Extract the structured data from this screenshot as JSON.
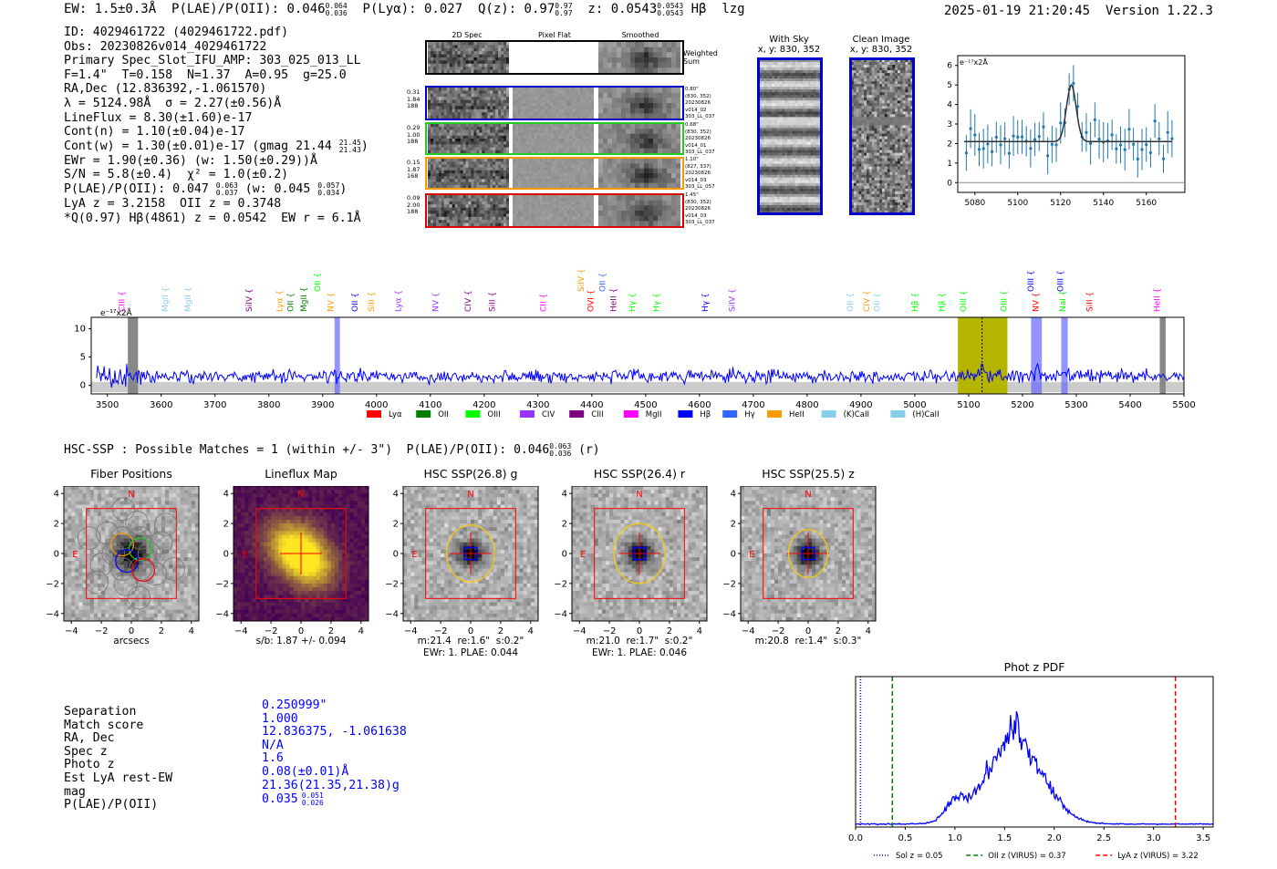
{
  "header": {
    "ew": "EW: 1.5±0.3Å",
    "plae_label": "P(LAE)/P(OII): 0.046",
    "plae_hi": "0.064",
    "plae_lo": "0.036",
    "plya": "P(Lyα): 0.027",
    "qz_label": "Q(z): 0.97",
    "qz_hi": "0.97",
    "qz_lo": "0.97",
    "z_label": "z: 0.0543",
    "z_hi": "0.0543",
    "z_lo": "0.0543",
    "line": "Hβ",
    "flag": "lzg",
    "datetime": "2025-01-19 21:20:45",
    "version": "Version 1.22.3"
  },
  "info": {
    "id": "ID: 4029461722 (4029461722.pdf)",
    "obs": "Obs: 20230826v014_4029461722",
    "primary": "Primary Spec_Slot_IFU_AMP: 303_025_013_LL",
    "fparams": "F=1.4\"  T=0.158  N=1.37  A=0.95  g=25.0",
    "radec": "RA,Dec (12.836392,-1.061570)",
    "lambda": "λ = 5124.98Å  σ = 2.27(±0.56)Å",
    "lineflux": "LineFlux = 8.30(±1.60)e-17",
    "contn": "Cont(n) = 1.10(±0.04)e-17",
    "contw": "Cont(w) = 1.30(±0.01)e-17 (gmag 21.44",
    "contw_hi": "21.45",
    "contw_lo": "21.43",
    "ewr": "EWr = 1.90(±0.36) (w: 1.50(±0.29))Å",
    "sn": "S/N = 5.8(±0.4)  χ² = 1.0(±0.2)",
    "plae": "P(LAE)/P(OII): 0.047",
    "plae_hi": "0.063",
    "plae_lo": "0.037",
    "plae_w": "(w: 0.045",
    "plae_w_hi": "0.057",
    "plae_w_lo": "0.034",
    "lya": "LyA z = 3.2158  OII z = 0.3748",
    "q": "*Q(0.97) Hβ(4861) z = 0.0542  EW r = 6.1Å"
  },
  "cutouts": {
    "col_labels": [
      "2D Spec",
      "Pixel Flat",
      "Smoothed"
    ],
    "weighted": "Weighted Sum",
    "rows": [
      {
        "num": [
          "0.31",
          "1.84",
          "188"
        ],
        "meta": [
          "0.80\"",
          "(830, 352)",
          "20230826",
          "v014_02",
          "303_LL_037"
        ],
        "color": "#0000cc"
      },
      {
        "num": [
          "0.29",
          "1.00",
          "188"
        ],
        "meta": [
          "0.68\"",
          "(830, 352)",
          "20230826",
          "v014_01",
          "303_LL_037"
        ],
        "color": "#22cc22"
      },
      {
        "num": [
          "0.15",
          "1.87",
          "168"
        ],
        "meta": [
          "1.10\"",
          "(827, 337)",
          "20230826",
          "v014_03",
          "303_LL_057"
        ],
        "color": "#ff9900"
      },
      {
        "num": [
          "0.09",
          "2.00",
          "188"
        ],
        "meta": [
          "1.45\"",
          "(830, 352)",
          "20230826",
          "v014_03",
          "303_LL_037"
        ],
        "color": "#dd0000"
      }
    ],
    "with_sky": "With Sky",
    "with_sky_coord": "x, y: 830, 352",
    "clean": "Clean Image",
    "clean_coord": "x, y: 830, 352"
  },
  "line_fit": {
    "unit": "e⁻¹⁷x2Å",
    "ylim": [
      -0.5,
      6.5
    ],
    "yticks": [
      "0",
      "1",
      "2",
      "3",
      "4",
      "5",
      "6"
    ],
    "xticks": [
      "5080",
      "5100",
      "5120",
      "5140",
      "5160"
    ]
  },
  "spectrum": {
    "unit": "e⁻¹⁷x2Å",
    "yticks": [
      "0",
      "5",
      "10"
    ],
    "xticks": [
      "3500",
      "3600",
      "3700",
      "3800",
      "3900",
      "4000",
      "4100",
      "4200",
      "4300",
      "4400",
      "4500",
      "4600",
      "4700",
      "4800",
      "4900",
      "5000",
      "5100",
      "5200",
      "5300",
      "5400",
      "5500"
    ],
    "legend": [
      {
        "label": "Lyα",
        "color": "#ff0000"
      },
      {
        "label": "OII",
        "color": "#008000"
      },
      {
        "label": "OIII",
        "color": "#00ff00"
      },
      {
        "label": "CIV",
        "color": "#9933ff"
      },
      {
        "label": "CIII",
        "color": "#800080"
      },
      {
        "label": "MgII",
        "color": "#ff00ff"
      },
      {
        "label": "Hβ",
        "color": "#0000ff"
      },
      {
        "label": "Hγ",
        "color": "#3366ff"
      },
      {
        "label": "HeII",
        "color": "#ff9900"
      },
      {
        "label": "(K)CaII",
        "color": "#87ceeb"
      },
      {
        "label": "(H)CaII",
        "color": "#87ceeb"
      }
    ],
    "lines": [
      {
        "x": 3527,
        "label": "CIII",
        "color": "#ff00ff",
        "row": 1
      },
      {
        "x": 3607,
        "label": "MgII",
        "color": "#87ceeb",
        "row": 1
      },
      {
        "x": 3650,
        "label": "MgII",
        "color": "#87ceeb",
        "row": 1
      },
      {
        "x": 3763,
        "label": "SiIV",
        "color": "#800080",
        "row": 1
      },
      {
        "x": 3820,
        "label": "Lyα",
        "color": "#ff9900",
        "row": 1
      },
      {
        "x": 3840,
        "label": "OII",
        "color": "#008000",
        "row": 1
      },
      {
        "x": 3865,
        "label": "MgII",
        "color": "#008000",
        "row": 1
      },
      {
        "x": 3890,
        "label": "OII",
        "color": "#00ff00",
        "row": 0
      },
      {
        "x": 3915,
        "label": "NV",
        "color": "#ff9900",
        "row": 1
      },
      {
        "x": 3960,
        "label": "OII",
        "color": "#0000ff",
        "row": 1
      },
      {
        "x": 3990,
        "label": "SiII",
        "color": "#ff9900",
        "row": 1
      },
      {
        "x": 4040,
        "label": "Lyα",
        "color": "#9933ff",
        "row": 1
      },
      {
        "x": 4110,
        "label": "NV",
        "color": "#9933ff",
        "row": 1
      },
      {
        "x": 4170,
        "label": "CIV",
        "color": "#800080",
        "row": 1
      },
      {
        "x": 4215,
        "label": "SiII",
        "color": "#800080",
        "row": 1
      },
      {
        "x": 4310,
        "label": "CII",
        "color": "#ff00ff",
        "row": 1
      },
      {
        "x": 4380,
        "label": "SiIV",
        "color": "#ff9900",
        "row": 0
      },
      {
        "x": 4398,
        "label": "OVI",
        "color": "#ff0000",
        "row": 1
      },
      {
        "x": 4420,
        "label": "OII",
        "color": "#3366ff",
        "row": 0
      },
      {
        "x": 4440,
        "label": "HeII",
        "color": "#800080",
        "row": 1
      },
      {
        "x": 4475,
        "label": "Hγ",
        "color": "#00ff00",
        "row": 1
      },
      {
        "x": 4520,
        "label": "Hγ",
        "color": "#00ff00",
        "row": 1
      },
      {
        "x": 4610,
        "label": "Hγ",
        "color": "#0000ff",
        "row": 1
      },
      {
        "x": 4660,
        "label": "SiIV",
        "color": "#9933ff",
        "row": 1
      },
      {
        "x": 4880,
        "label": "OII",
        "color": "#87ceeb",
        "row": 1
      },
      {
        "x": 4910,
        "label": "CIV",
        "color": "#ff9900",
        "row": 1
      },
      {
        "x": 4930,
        "label": "OII",
        "color": "#87ceeb",
        "row": 1
      },
      {
        "x": 5000,
        "label": "Hβ",
        "color": "#00ff00",
        "row": 1
      },
      {
        "x": 5050,
        "label": "Hβ",
        "color": "#00ff00",
        "row": 1
      },
      {
        "x": 5090,
        "label": "OIII",
        "color": "#00ff00",
        "row": 1
      },
      {
        "x": 5165,
        "label": "OIII",
        "color": "#00ff00",
        "row": 1
      },
      {
        "x": 5215,
        "label": "OIII",
        "color": "#0000ff",
        "row": 0
      },
      {
        "x": 5225,
        "label": "NV",
        "color": "#ff0000",
        "row": 1
      },
      {
        "x": 5270,
        "label": "OIII",
        "color": "#0000ff",
        "row": 0
      },
      {
        "x": 5275,
        "label": "NaI",
        "color": "#00ff00",
        "row": 1
      },
      {
        "x": 5325,
        "label": "SiII",
        "color": "#ff0000",
        "row": 1
      },
      {
        "x": 5450,
        "label": "HeII",
        "color": "#ff00ff",
        "row": 1
      }
    ]
  },
  "hsc": {
    "title_line": "HSC-SSP : Possible Matches = 1 (within +/- 3\")  P(LAE)/P(OII): 0.046",
    "title_hi": "0.063",
    "title_lo": "0.036",
    "title_band": "(r)",
    "panels": [
      {
        "title": "Fiber Positions",
        "caption1": "arcsecs",
        "caption2": ""
      },
      {
        "title": "Lineflux Map",
        "caption1": "s/b: 1.87 +/- 0.094",
        "caption2": ""
      },
      {
        "title": "HSC SSP(26.8) g",
        "caption1": "m:21.4  re:1.6\"  s:0.2\"",
        "caption2": "EWr: 1. PLAE: 0.044"
      },
      {
        "title": "HSC SSP(26.4) r",
        "caption1": "m:21.0  re:1.7\"  s:0.2\"",
        "caption2": "EWr: 1. PLAE: 0.046"
      },
      {
        "title": "HSC SSP(25.5) z",
        "caption1": "m:20.8  re:1.4\"  s:0.3\"",
        "caption2": ""
      }
    ],
    "ticks": [
      "−4",
      "−2",
      "0",
      "2",
      "4"
    ],
    "compass_n": "N",
    "compass_e": "E"
  },
  "match": {
    "labels": [
      "Separation",
      "Match score",
      "RA, Dec",
      "Spec z",
      "Photo z",
      "Est LyA rest-EW",
      "mag",
      "P(LAE)/P(OII)"
    ],
    "values": [
      "0.250999\"",
      "1.000",
      "12.836375, -1.061638",
      "N/A",
      "1.6",
      "0.08(±0.01)Å",
      "21.36(21.35,21.38)g",
      "0.035"
    ],
    "plae_hi": "0.051",
    "plae_lo": "0.026"
  },
  "photz": {
    "title": "Phot z PDF",
    "xticks": [
      "0.0",
      "0.5",
      "1.0",
      "1.5",
      "2.0",
      "2.5",
      "3.0",
      "3.5"
    ],
    "legend": [
      {
        "label": "Sol z = 0.05",
        "color": "#0000ff",
        "z": 0.05,
        "dash": "1,2"
      },
      {
        "label": "OII z (VIRUS) = 0.37",
        "color": "#008000",
        "z": 0.37,
        "dash": "5,3"
      },
      {
        "label": "LyA z (VIRUS) = 3.22",
        "color": "#ff0000",
        "z": 3.22,
        "dash": "5,3"
      }
    ]
  }
}
